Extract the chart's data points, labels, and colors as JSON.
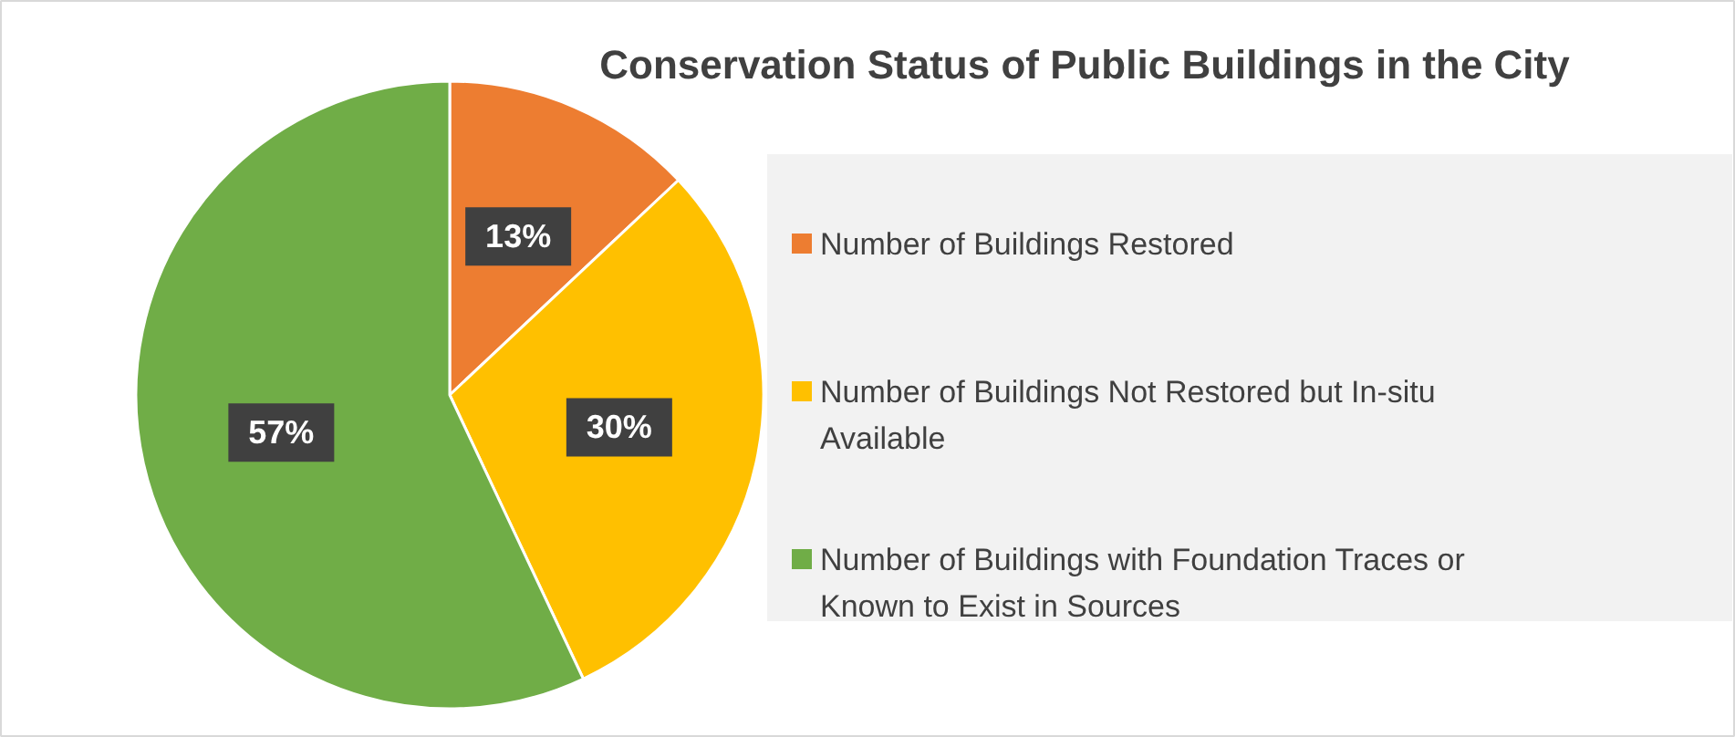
{
  "chart_data": {
    "type": "pie",
    "title": "Conservation Status of Public Buildings in the City",
    "categories": [
      "Number of Buildings Restored",
      "Number of Buildings Not Restored but In-situ Available",
      "Number of Buildings with Foundation Traces or Known to Exist in Sources"
    ],
    "values": [
      13,
      30,
      57
    ],
    "colors": [
      "#ed7d31",
      "#ffc000",
      "#70ad47"
    ],
    "value_labels": [
      "13%",
      "30%",
      "57%"
    ],
    "legend": "right"
  }
}
